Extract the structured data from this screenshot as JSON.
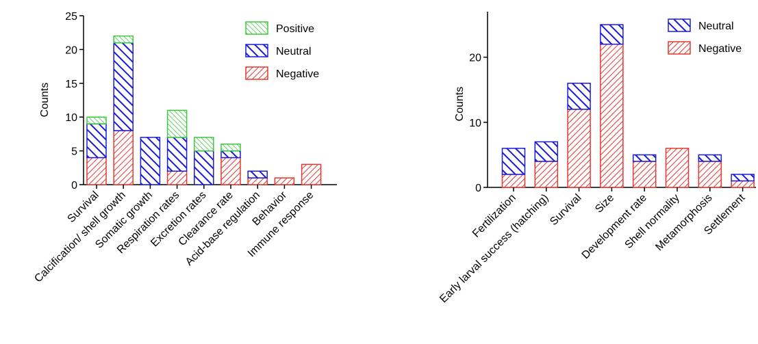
{
  "chart_data": [
    {
      "type": "bar",
      "stacked": true,
      "title": "",
      "xlabel": "",
      "ylabel": "Counts",
      "ylim": [
        0,
        25
      ],
      "yticks": [
        0,
        5,
        10,
        15,
        20,
        25
      ],
      "legend_position": "top-right",
      "categories": [
        "Survival",
        "Calcification/ shell growth",
        "Somatic growth",
        "Respiration rates",
        "Excretion rates",
        "Clearance rate",
        "Acid-base regulation",
        "Behavior",
        "Immune response"
      ],
      "series": [
        {
          "name": "Negative",
          "color": "#e8362f",
          "fill": "#f3b0ab",
          "values": [
            4,
            8,
            0,
            2,
            0,
            4,
            1,
            1,
            3
          ]
        },
        {
          "name": "Neutral",
          "color": "#1a1adb",
          "fill": "#ffffff",
          "values": [
            5,
            13,
            7,
            5,
            5,
            1,
            1,
            0,
            0
          ]
        },
        {
          "name": "Positive",
          "color": "#3ec83e",
          "fill": "#c9f0c9",
          "values": [
            1,
            1,
            0,
            4,
            2,
            1,
            0,
            0,
            0
          ]
        }
      ],
      "legend_order": [
        "Positive",
        "Neutral",
        "Negative"
      ]
    },
    {
      "type": "bar",
      "stacked": true,
      "title": "",
      "xlabel": "",
      "ylabel": "Counts",
      "ylim": [
        0,
        27
      ],
      "yticks": [
        0,
        10,
        20
      ],
      "legend_position": "top-right",
      "categories": [
        "Fertilization",
        "Early larval success (hatching)",
        "Survival",
        "Size",
        "Development rate",
        "Shell normality",
        "Metamorphosis",
        "Settlement"
      ],
      "series": [
        {
          "name": "Negative",
          "color": "#e8362f",
          "fill": "#f3b0ab",
          "values": [
            2,
            4,
            12,
            22,
            4,
            6,
            4,
            1
          ]
        },
        {
          "name": "Neutral",
          "color": "#1a1adb",
          "fill": "#ffffff",
          "values": [
            4,
            3,
            4,
            3,
            1,
            0,
            1,
            1
          ]
        }
      ],
      "legend_order": [
        "Neutral",
        "Negative"
      ]
    }
  ]
}
